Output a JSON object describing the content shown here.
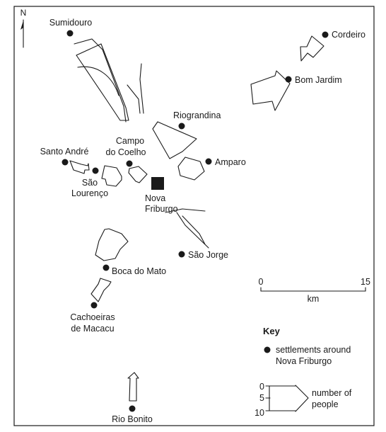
{
  "north_label": "N",
  "settlements": [
    {
      "name": "Sumidouro",
      "lines": [
        "Sumidouro"
      ]
    },
    {
      "name": "Cordeiro",
      "lines": [
        "Cordeiro"
      ]
    },
    {
      "name": "Bom Jardim",
      "lines": [
        "Bom Jardim"
      ]
    },
    {
      "name": "Riograndina",
      "lines": [
        "Riograndina"
      ]
    },
    {
      "name": "Campo do Coelho",
      "lines": [
        "Campo",
        "do Coelho"
      ]
    },
    {
      "name": "Santo André",
      "lines": [
        "Santo André"
      ]
    },
    {
      "name": "São Lourenço",
      "lines": [
        "São",
        "Lourenço"
      ]
    },
    {
      "name": "Amparo",
      "lines": [
        "Amparo"
      ]
    },
    {
      "name": "São Jorge",
      "lines": [
        "São Jorge"
      ]
    },
    {
      "name": "Boca do Mato",
      "lines": [
        "Boca do Mato"
      ]
    },
    {
      "name": "Cachoeiras de Macacu",
      "lines": [
        "Cachoeiras",
        "de Macacu"
      ]
    },
    {
      "name": "Rio Bonito",
      "lines": [
        "Rio Bonito"
      ]
    }
  ],
  "city": {
    "name": "Nova Friburgo",
    "lines": [
      "Nova",
      "Friburgo"
    ]
  },
  "scale": {
    "start": "0",
    "end": "15",
    "unit": "km"
  },
  "key": {
    "title": "Key",
    "settlement_label": [
      "settlements around",
      "Nova Friburgo"
    ],
    "arrow_ticks": [
      "0",
      "5",
      "10"
    ],
    "arrow_label": [
      "number of",
      "people"
    ]
  }
}
